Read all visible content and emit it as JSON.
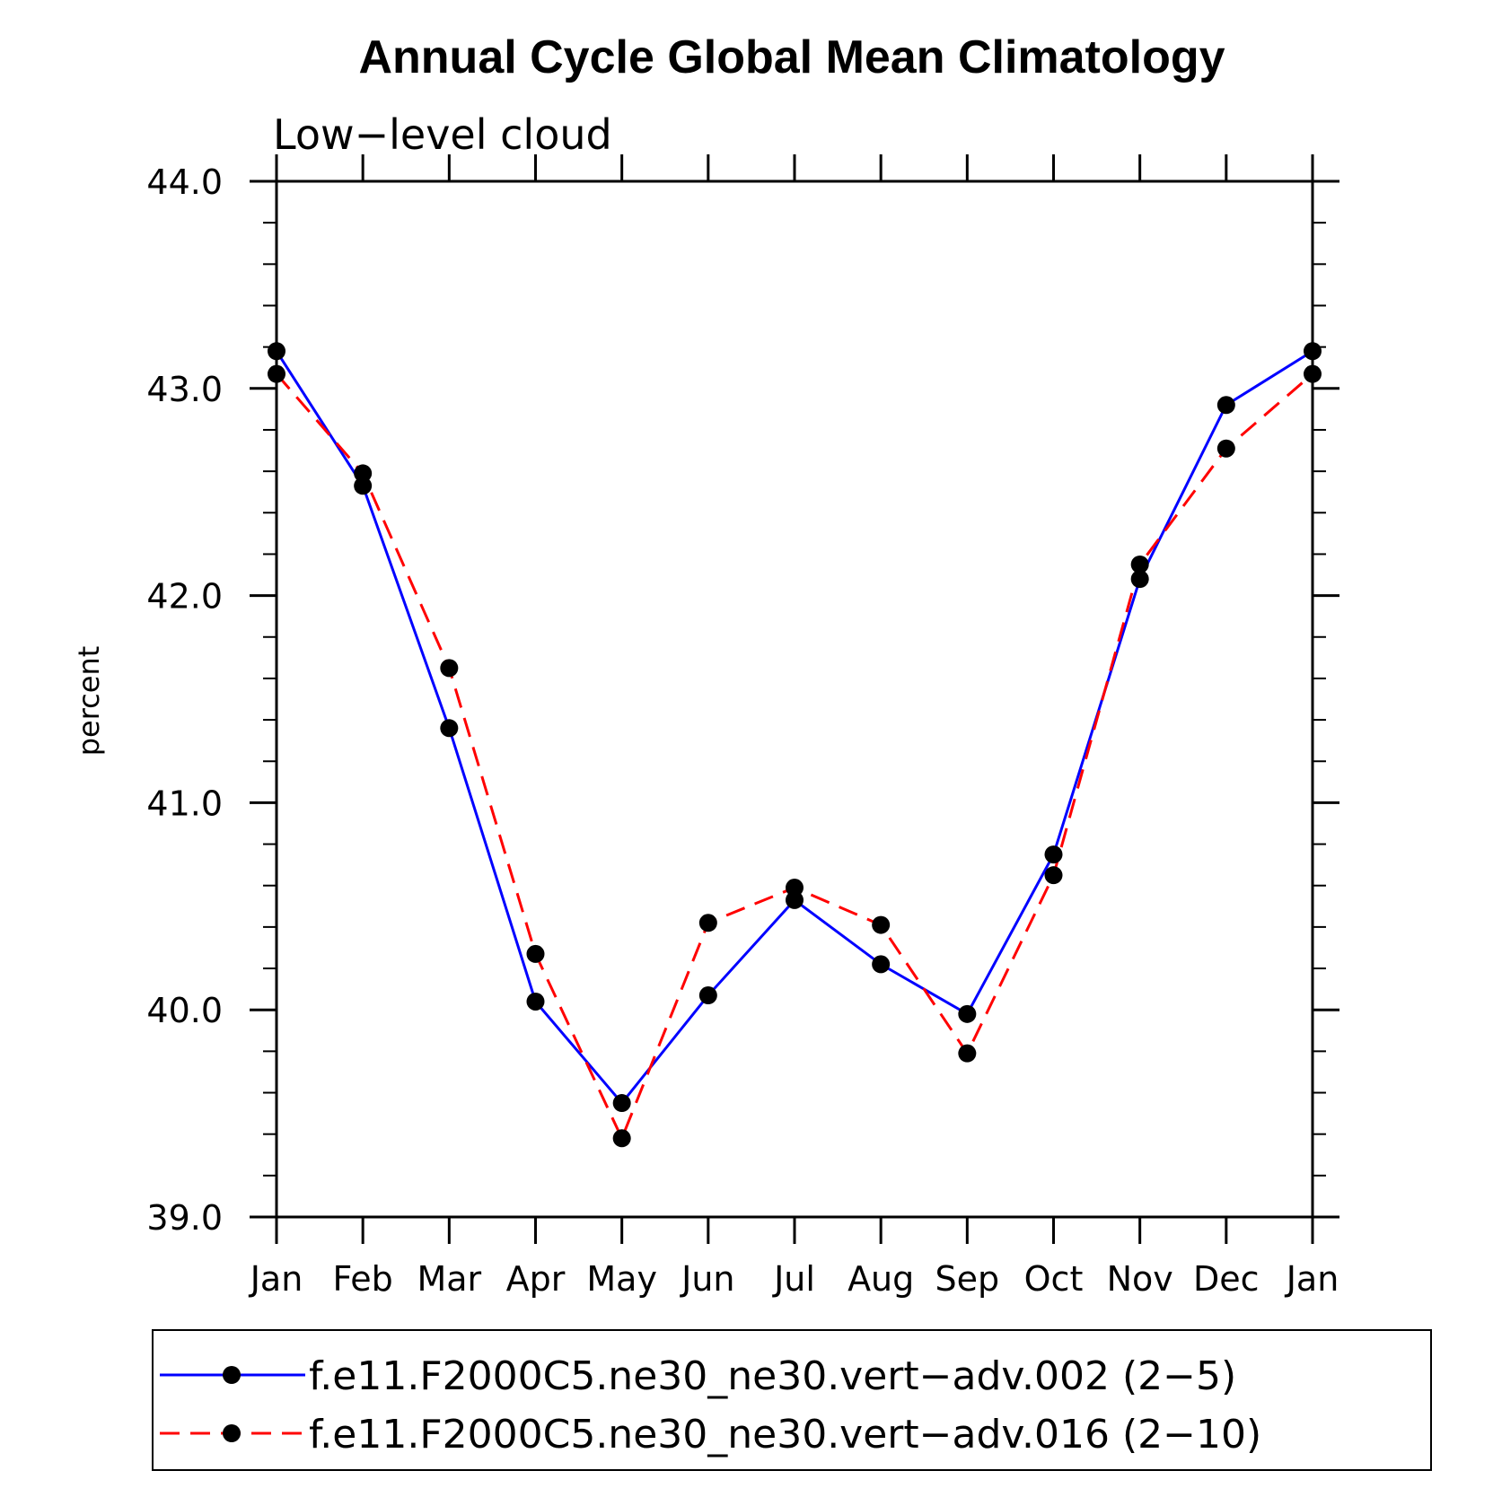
{
  "colors": {
    "series_1": "#0000ff",
    "series_2": "#ff0000",
    "marker": "#000000"
  },
  "chart_data": {
    "type": "line",
    "title": "Annual Cycle Global Mean Climatology",
    "subtitle": "Low−level cloud",
    "xlabel": "",
    "ylabel": "percent",
    "categories": [
      "Jan",
      "Feb",
      "Mar",
      "Apr",
      "May",
      "Jun",
      "Jul",
      "Aug",
      "Sep",
      "Oct",
      "Nov",
      "Dec",
      "Jan"
    ],
    "ylim": [
      39.0,
      44.0
    ],
    "yticks": [
      39.0,
      40.0,
      41.0,
      42.0,
      43.0,
      44.0
    ],
    "ytick_labels": [
      "39.0",
      "40.0",
      "41.0",
      "42.0",
      "43.0",
      "44.0"
    ],
    "grid": false,
    "legend_position": "bottom",
    "series": [
      {
        "name": "f.e11.F2000C5.ne30_ne30.vert−adv.002 (2−5)",
        "line_style": "solid",
        "marker": "circle",
        "values": [
          43.18,
          42.53,
          41.36,
          40.04,
          39.55,
          40.07,
          40.53,
          40.22,
          39.98,
          40.75,
          42.08,
          42.92,
          43.18
        ]
      },
      {
        "name": "f.e11.F2000C5.ne30_ne30.vert−adv.016 (2−10)",
        "line_style": "dashed",
        "marker": "circle",
        "values": [
          43.07,
          42.59,
          41.65,
          40.27,
          39.38,
          40.42,
          40.59,
          40.41,
          39.79,
          40.65,
          42.15,
          42.71,
          43.07
        ]
      }
    ]
  }
}
